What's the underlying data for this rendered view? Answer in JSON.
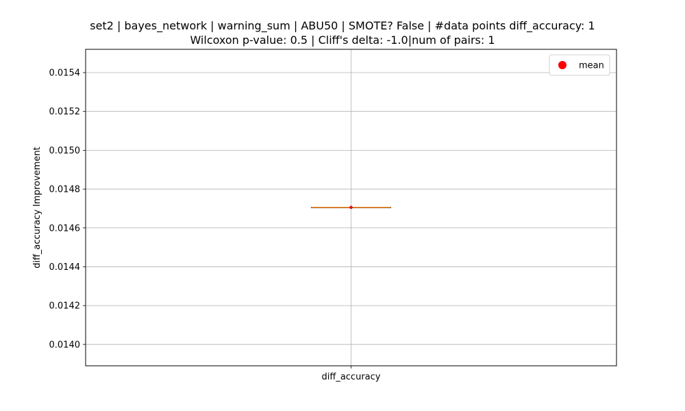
{
  "chart_data": {
    "type": "box",
    "title_line1": "set2 | bayes_network | warning_sum | ABU50 | SMOTE? False | #data points diff_accuracy: 1",
    "title_line2": "Wilcoxon p-value: 0.5 | Cliff's delta: -1.0|num of pairs: 1",
    "xlabel": "",
    "ylabel": "diff_accuracy Improvement",
    "categories": [
      "diff_accuracy"
    ],
    "box": {
      "min": 0.014706,
      "q1": 0.014706,
      "median": 0.014706,
      "q3": 0.014706,
      "max": 0.014706
    },
    "mean": 0.014706,
    "ylim": [
      0.01389,
      0.01552
    ],
    "yticks": [
      0.014,
      0.0142,
      0.0144,
      0.0146,
      0.0148,
      0.015,
      0.0152,
      0.0154
    ],
    "ytick_labels": [
      "0.0140",
      "0.0142",
      "0.0144",
      "0.0146",
      "0.0148",
      "0.0150",
      "0.0152",
      "0.0154"
    ],
    "grid": true,
    "legend": {
      "position": "top-right",
      "entries": [
        {
          "label": "mean",
          "color": "#ff0000",
          "marker": "circle"
        }
      ]
    },
    "colors": {
      "median": "#ff7f0e",
      "mean": "#ff0000",
      "grid": "#b0b0b0",
      "box": "#000000"
    }
  }
}
